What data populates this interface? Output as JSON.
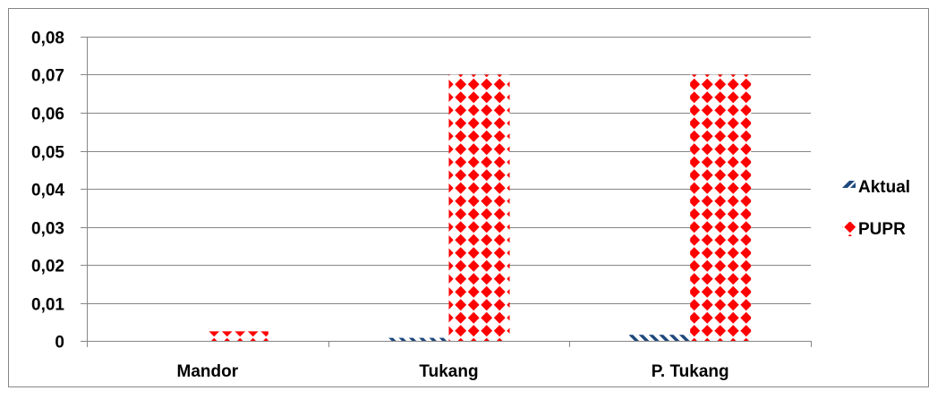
{
  "chart_data": {
    "type": "bar",
    "title": "",
    "xlabel": "",
    "ylabel": "",
    "categories": [
      "Mandor",
      "Tukang",
      "P. Tukang"
    ],
    "series": [
      {
        "name": "Aktual",
        "values": [
          0.0,
          0.0008,
          0.0016
        ],
        "color": "#1f497d",
        "pattern": "diagonal-stripes"
      },
      {
        "name": "PUPR",
        "values": [
          0.0025,
          0.07,
          0.07
        ],
        "color": "#ff0000",
        "pattern": "diamonds"
      }
    ],
    "ylim": [
      0,
      0.08
    ],
    "y_ticks": [
      "0",
      "0,01",
      "0,02",
      "0,03",
      "0,04",
      "0,05",
      "0,06",
      "0,07",
      "0,08"
    ],
    "grid": true,
    "legend_position": "right"
  }
}
